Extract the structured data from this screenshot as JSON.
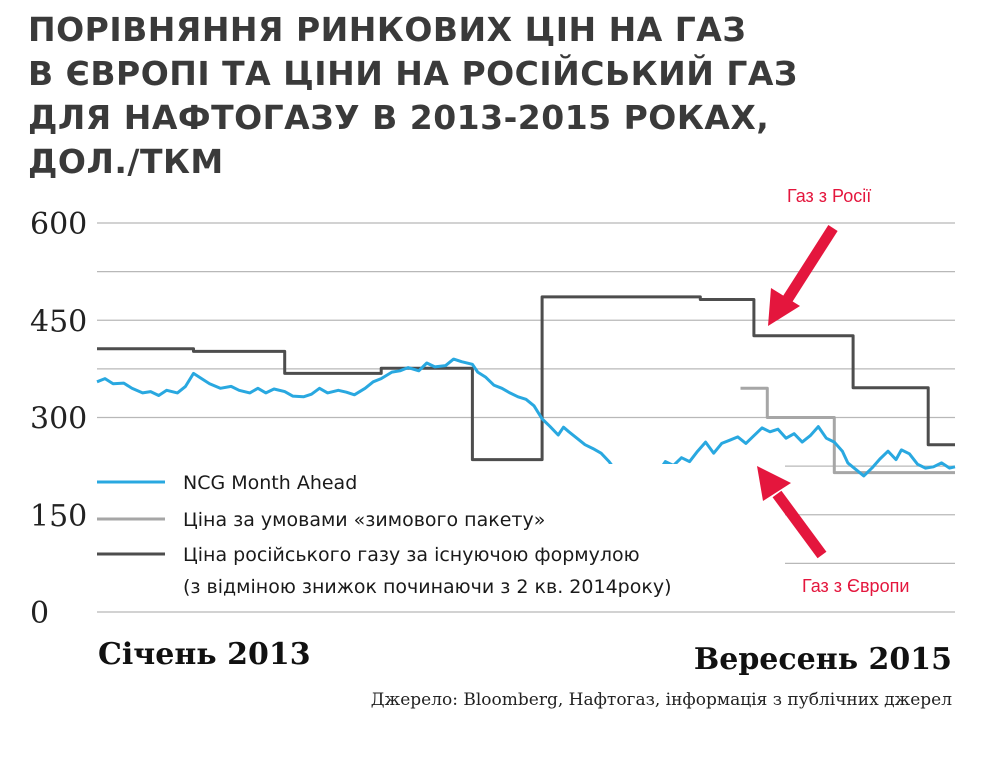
{
  "title_lines": [
    "ПОРІВНЯННЯ РИНКОВИХ ЦІН НА ГАЗ",
    "В ЄВРОПІ ТА ЦІНИ НА РОСІЙСЬКИЙ ГАЗ",
    "ДЛЯ НАФТОГАЗУ В 2013-2015  РОКАХ,",
    "ДОЛ./ТКМ"
  ],
  "x_start_label": "Січень 2013",
  "x_end_label": "Вересень 2015",
  "source": "Джерело: Bloomberg, Нафтогаз, інформація з публічних джерел",
  "colors": {
    "ncg": "#29a8e0",
    "winter": "#a6a6a6",
    "russian": "#4d4d4d",
    "annotation": "#e4163d",
    "grid": "#b8b8b8"
  },
  "chart_data": {
    "type": "line",
    "x_unit": "months since January 2013",
    "xlim": [
      0,
      32
    ],
    "ylim": [
      0,
      600
    ],
    "yticks": [
      "600",
      "450",
      "300",
      "150",
      "0"
    ],
    "grid": "horizontal",
    "legend_position": "bottom-left",
    "legend": [
      "NCG Month Ahead",
      "Ціна за умовами «зимового пакету»",
      "Ціна російського  газу за існуючою формулою",
      "(з відміною  знижок починаючи з 2 кв. 2014року)"
    ],
    "series": [
      {
        "name": "NCG Month Ahead",
        "color_key": "ncg",
        "step": false,
        "points": [
          [
            0,
            355
          ],
          [
            0.3,
            360
          ],
          [
            0.6,
            352
          ],
          [
            1,
            353
          ],
          [
            1.3,
            345
          ],
          [
            1.7,
            338
          ],
          [
            2,
            340
          ],
          [
            2.3,
            334
          ],
          [
            2.6,
            342
          ],
          [
            3,
            338
          ],
          [
            3.3,
            348
          ],
          [
            3.6,
            368
          ],
          [
            3.9,
            360
          ],
          [
            4.2,
            352
          ],
          [
            4.6,
            345
          ],
          [
            5,
            348
          ],
          [
            5.3,
            342
          ],
          [
            5.7,
            338
          ],
          [
            6,
            345
          ],
          [
            6.3,
            338
          ],
          [
            6.6,
            344
          ],
          [
            7,
            340
          ],
          [
            7.3,
            333
          ],
          [
            7.7,
            332
          ],
          [
            8,
            336
          ],
          [
            8.3,
            345
          ],
          [
            8.6,
            338
          ],
          [
            9,
            342
          ],
          [
            9.3,
            339
          ],
          [
            9.6,
            335
          ],
          [
            10,
            345
          ],
          [
            10.3,
            355
          ],
          [
            10.6,
            360
          ],
          [
            11,
            370
          ],
          [
            11.3,
            372
          ],
          [
            11.6,
            377
          ],
          [
            12,
            372
          ],
          [
            12.3,
            384
          ],
          [
            12.6,
            378
          ],
          [
            13,
            380
          ],
          [
            13.3,
            390
          ],
          [
            13.6,
            386
          ],
          [
            14,
            382
          ],
          [
            14.2,
            370
          ],
          [
            14.5,
            362
          ],
          [
            14.8,
            350
          ],
          [
            15.1,
            345
          ],
          [
            15.4,
            338
          ],
          [
            15.7,
            332
          ],
          [
            16,
            328
          ],
          [
            16.3,
            318
          ],
          [
            16.6,
            298
          ],
          [
            16.9,
            286
          ],
          [
            17.2,
            273
          ],
          [
            17.4,
            285
          ],
          [
            17.6,
            278
          ],
          [
            17.9,
            268
          ],
          [
            18.2,
            258
          ],
          [
            18.5,
            252
          ],
          [
            18.8,
            245
          ],
          [
            19.1,
            232
          ],
          [
            19.4,
            215
          ],
          [
            19.7,
            225
          ],
          [
            20,
            220
          ],
          [
            20.3,
            205
          ],
          [
            20.6,
            200
          ],
          [
            20.9,
            214
          ],
          [
            21.2,
            232
          ],
          [
            21.5,
            226
          ],
          [
            21.8,
            238
          ],
          [
            22.1,
            232
          ],
          [
            22.4,
            248
          ],
          [
            22.7,
            262
          ],
          [
            23,
            245
          ],
          [
            23.3,
            260
          ],
          [
            23.6,
            265
          ],
          [
            23.9,
            270
          ],
          [
            24.2,
            260
          ],
          [
            24.5,
            272
          ],
          [
            24.8,
            284
          ],
          [
            25.1,
            278
          ],
          [
            25.4,
            282
          ],
          [
            25.7,
            268
          ],
          [
            26,
            275
          ],
          [
            26.3,
            262
          ],
          [
            26.6,
            272
          ],
          [
            26.9,
            286
          ],
          [
            27.2,
            268
          ],
          [
            27.5,
            262
          ],
          [
            27.8,
            248
          ],
          [
            28,
            230
          ],
          [
            28.3,
            220
          ],
          [
            28.6,
            210
          ],
          [
            28.9,
            222
          ],
          [
            29.2,
            236
          ],
          [
            29.5,
            248
          ],
          [
            29.8,
            235
          ],
          [
            30,
            250
          ],
          [
            30.3,
            244
          ],
          [
            30.6,
            228
          ],
          [
            30.9,
            222
          ],
          [
            31.2,
            224
          ],
          [
            31.5,
            230
          ],
          [
            31.8,
            222
          ],
          [
            32,
            224
          ]
        ]
      },
      {
        "name": "Ціна за умовами «зимового пакету»",
        "color_key": "winter",
        "step": true,
        "points": [
          [
            24,
            345
          ],
          [
            25,
            345
          ],
          [
            25,
            300
          ],
          [
            27.5,
            300
          ],
          [
            27.5,
            215
          ],
          [
            32,
            215
          ]
        ]
      },
      {
        "name": "Ціна російського  газу за існуючою формулою",
        "color_key": "russian",
        "step": true,
        "points": [
          [
            0,
            406
          ],
          [
            3.6,
            406
          ],
          [
            3.6,
            402
          ],
          [
            7,
            402
          ],
          [
            7,
            368
          ],
          [
            10.6,
            368
          ],
          [
            10.6,
            376
          ],
          [
            14,
            376
          ],
          [
            14,
            235
          ],
          [
            16.6,
            235
          ],
          [
            16.6,
            486
          ],
          [
            22.5,
            486
          ],
          [
            22.5,
            482
          ],
          [
            24.5,
            482
          ],
          [
            24.5,
            426
          ],
          [
            28.2,
            426
          ],
          [
            28.2,
            346
          ],
          [
            31,
            346
          ],
          [
            31,
            258
          ],
          [
            32,
            258
          ]
        ]
      }
    ],
    "annotations": [
      {
        "text": "Газ з Росії",
        "points_to": "Ціна російського  газу за існуючою формулою"
      },
      {
        "text": "Газ з Європи",
        "points_to": "NCG Month Ahead"
      }
    ]
  }
}
